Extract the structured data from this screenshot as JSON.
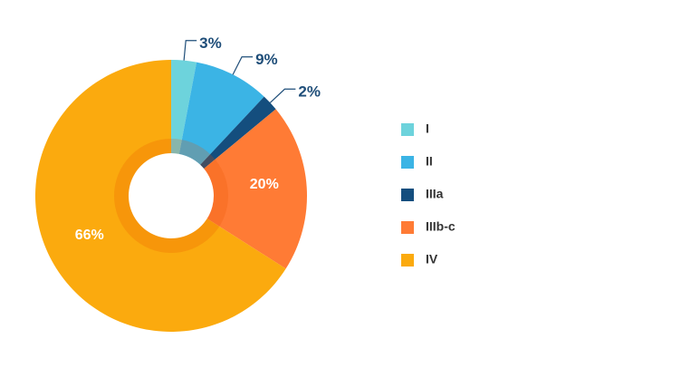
{
  "chart_data": {
    "type": "donut",
    "categories": [
      "I",
      "II",
      "IIIa",
      "IIIb-c",
      "IV"
    ],
    "values": [
      3,
      9,
      2,
      20,
      66
    ],
    "value_labels": [
      "3%",
      "9%",
      "2%",
      "20%",
      "66%"
    ],
    "colors": [
      "#6dd3dc",
      "#3bb4e5",
      "#144e7e",
      "#ff7b35",
      "#fbaa0e"
    ],
    "legend": "right"
  }
}
